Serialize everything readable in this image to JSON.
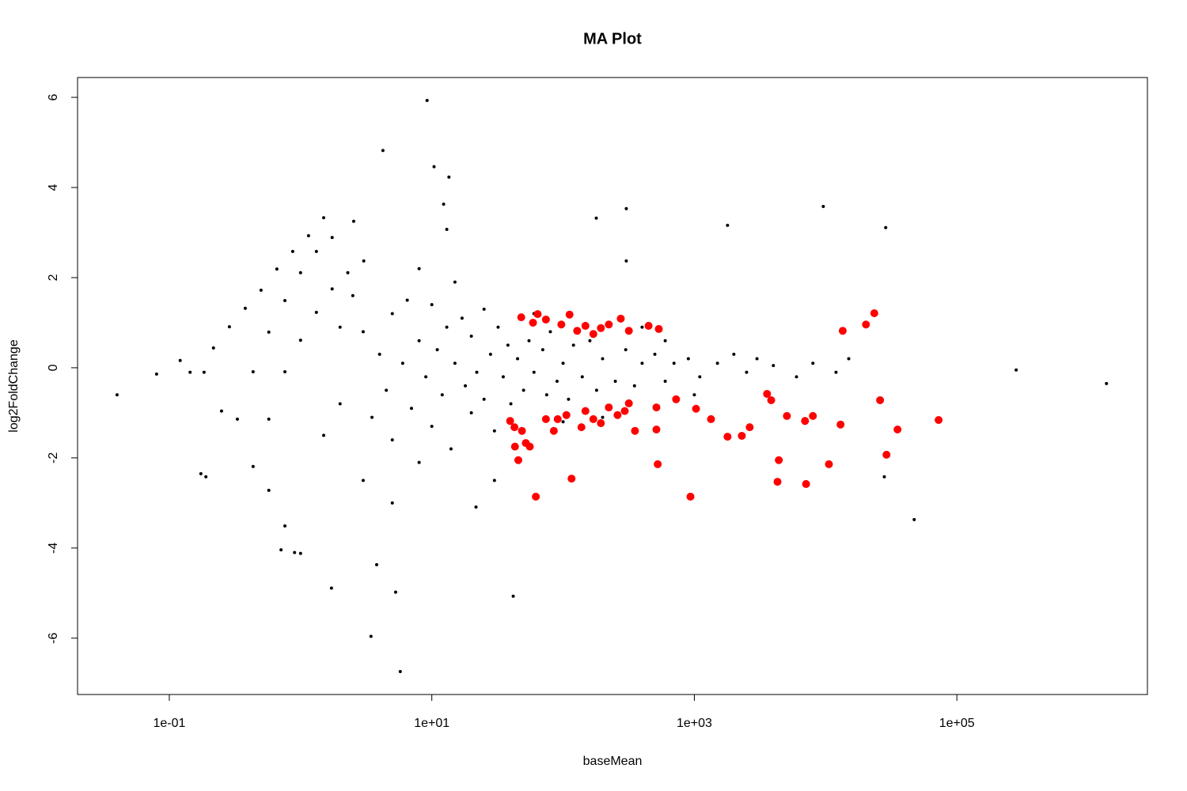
{
  "chart_data": {
    "type": "scatter",
    "title": "MA Plot",
    "x_label": "baseMean",
    "y_label": "log2FoldChange",
    "xlog": true,
    "xlim": [
      0.02,
      2830000
    ],
    "ylim": [
      -7.25,
      6.44
    ],
    "xticks": [
      {
        "value": 0.1,
        "label": "1e-01"
      },
      {
        "value": 10,
        "label": "1e+01"
      },
      {
        "value": 1000,
        "label": "1e+03"
      },
      {
        "value": 100000,
        "label": "1e+05"
      }
    ],
    "yticks": [
      -6,
      -4,
      -2,
      0,
      2,
      4,
      6
    ],
    "series": [
      {
        "color": "#000000",
        "x": [
          0.04,
          0.08,
          0.121,
          0.144,
          0.184,
          0.174,
          0.19,
          9.2,
          4.24,
          10.4,
          13.5,
          12.3,
          13,
          179,
          303,
          303,
          1790,
          9600,
          28700,
          283000,
          1380000,
          47300,
          28000,
          3.44,
          5.75,
          5.3,
          41.7,
          1.72,
          3.8,
          21.7,
          0.9,
          0.71,
          0.217,
          0.287,
          0.379,
          0.5,
          0.66,
          0.871,
          1.15,
          1.5,
          0.435,
          0.573,
          0.76,
          1.0,
          1.32,
          1.74,
          2.54,
          0.435,
          0.573,
          0.76,
          1.0,
          0.76,
          1.0,
          1.32,
          1.74,
          2.29,
          3.03,
          0.33,
          0.25,
          0.573,
          3,
          3.5,
          4,
          4.5,
          5,
          5,
          6,
          6.5,
          7,
          8,
          8,
          9,
          10,
          10,
          11,
          12,
          13,
          14,
          15,
          17,
          18,
          20,
          20,
          22,
          25,
          25,
          28,
          30,
          32,
          35,
          38,
          40,
          45,
          50,
          55,
          60,
          70,
          75,
          80,
          90,
          100,
          110,
          120,
          140,
          160,
          180,
          200,
          250,
          300,
          350,
          400,
          500,
          600,
          700,
          900,
          1100,
          1500,
          2000,
          2500,
          3000,
          4000,
          6000,
          8000,
          12000,
          15000,
          2,
          2,
          1.5,
          2.5,
          3,
          5,
          8,
          15,
          30,
          60,
          100,
          200,
          400,
          600,
          1000
        ],
        "values": [
          -0.6,
          -0.14,
          0.16,
          -0.1,
          -0.1,
          -2.35,
          -2.42,
          5.93,
          4.82,
          4.46,
          4.23,
          3.63,
          3.07,
          3.32,
          3.53,
          2.37,
          3.16,
          3.58,
          3.11,
          -0.05,
          -0.35,
          -3.37,
          -2.42,
          -5.96,
          -6.74,
          -4.98,
          -5.07,
          -4.89,
          -4.37,
          -3.09,
          -4.1,
          -4.04,
          0.44,
          0.91,
          1.32,
          1.72,
          2.19,
          2.58,
          2.93,
          3.33,
          -0.09,
          0.79,
          1.49,
          2.11,
          2.58,
          2.89,
          3.25,
          -2.19,
          -2.72,
          -3.51,
          -4.12,
          -0.09,
          0.61,
          1.23,
          1.75,
          2.11,
          2.37,
          -1.14,
          -0.96,
          -1.14,
          0.8,
          -1.1,
          0.3,
          -0.5,
          1.2,
          -1.6,
          0.1,
          1.5,
          -0.9,
          0.6,
          -2.1,
          -0.2,
          1.4,
          -1.3,
          0.4,
          -0.6,
          0.9,
          -1.8,
          0.1,
          1.1,
          -0.4,
          0.7,
          -1.0,
          -0.1,
          1.3,
          -0.7,
          0.3,
          -1.4,
          0.9,
          -0.2,
          0.5,
          -0.8,
          0.2,
          -0.5,
          0.6,
          -0.1,
          0.4,
          -0.6,
          0.8,
          -0.3,
          0.1,
          -0.7,
          0.5,
          -0.2,
          0.6,
          -0.5,
          0.2,
          -0.3,
          0.4,
          -0.4,
          0.1,
          0.3,
          -0.3,
          0.1,
          0.2,
          -0.2,
          0.1,
          0.3,
          -0.1,
          0.2,
          0.05,
          -0.2,
          0.1,
          -0.1,
          0.2,
          0.9,
          -0.8,
          -1.5,
          1.6,
          -2.5,
          -3,
          2.2,
          1.9,
          -2.5,
          1.2,
          -1.2,
          -1.1,
          0.9,
          0.6,
          -0.6
        ]
      },
      {
        "color": "#ff0000",
        "x": [
          48,
          64,
          74,
          112,
          59,
          97,
          148,
          194,
          223,
          275,
          317,
          448,
          536,
          170,
          128,
          39.5,
          48.6,
          43,
          45.6,
          55.8,
          62,
          74,
          85,
          106,
          116,
          148,
          194,
          223,
          295,
          353,
          514,
          514,
          526,
          934,
          1030,
          1340,
          1790,
          2640,
          3580,
          3850,
          4300,
          4400,
          5070,
          6970,
          7100,
          10600,
          13000,
          13500,
          20300,
          23500,
          26000,
          29100,
          35300,
          72600,
          8000,
          2300,
          42.6,
          52,
          91,
          138,
          170,
          260,
          317,
          726
        ],
        "values": [
          1.12,
          1.19,
          1.07,
          1.18,
          1.0,
          0.96,
          0.93,
          0.88,
          0.96,
          1.09,
          0.82,
          0.93,
          0.86,
          0.75,
          0.82,
          -1.18,
          -1.4,
          -1.75,
          -2.05,
          -1.75,
          -2.86,
          -1.14,
          -1.4,
          -1.05,
          -2.46,
          -0.96,
          -1.23,
          -0.88,
          -0.96,
          -1.4,
          -0.88,
          -1.37,
          -2.14,
          -2.86,
          -0.91,
          -1.14,
          -1.53,
          -1.32,
          -0.58,
          -0.72,
          -2.53,
          -2.05,
          -1.07,
          -1.18,
          -2.58,
          -2.14,
          -1.26,
          0.82,
          0.96,
          1.21,
          -0.72,
          -1.93,
          -1.37,
          -1.16,
          -1.07,
          -1.51,
          -1.32,
          -1.67,
          -1.14,
          -1.32,
          -1.14,
          -1.05,
          -0.79,
          -0.7
        ]
      }
    ]
  }
}
